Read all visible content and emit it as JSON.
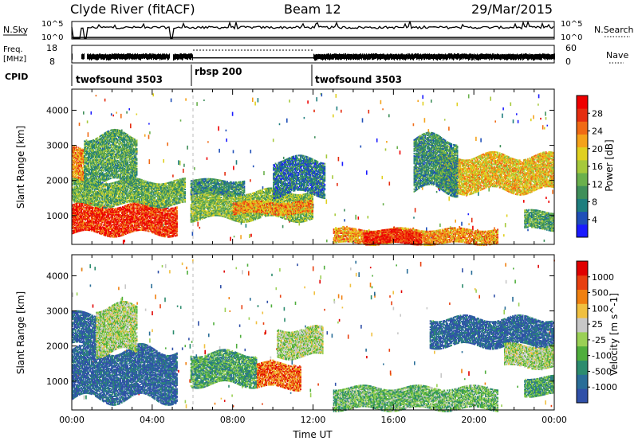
{
  "header": {
    "station": "Clyde River (fitACF)",
    "beam": "Beam 12",
    "date": "29/Mar/2015"
  },
  "nsky_panel": {
    "label": "N.Sky",
    "tick_top": "10^5",
    "tick_bottom": "10^0",
    "right_tick_top": "10^5",
    "right_tick_bottom": "10^0",
    "right_label": "N.Search"
  },
  "freq_panel": {
    "label_line1": "Freq.",
    "label_line2": "[MHz]",
    "tick_top": "18",
    "tick_bottom": "8",
    "right_tick_top": "60",
    "right_tick_bottom": "0",
    "right_label": "Nave"
  },
  "cpid_panel": {
    "label": "CPID",
    "segments": [
      {
        "name": "twofsound 3503",
        "start_h": 0,
        "end_h": 6
      },
      {
        "name": "rbsp 200",
        "start_h": 6,
        "end_h": 12
      },
      {
        "name": "twofsound 3503",
        "start_h": 12,
        "end_h": 24
      }
    ]
  },
  "time_axis": {
    "label": "Time UT",
    "ticks": [
      "00:00",
      "04:00",
      "08:00",
      "12:00",
      "16:00",
      "20:00",
      "00:00"
    ]
  },
  "chart_data": [
    {
      "type": "heatmap",
      "title": "Power",
      "ylabel": "Slant Range [km]",
      "xlabel": "",
      "x_range_h": [
        0,
        24
      ],
      "ylim": [
        180,
        4600
      ],
      "yticks": [
        "1000",
        "2000",
        "3000",
        "4000"
      ],
      "colorbar": {
        "label": "Power [dB]",
        "ticks": [
          "28",
          "24",
          "20",
          "16",
          "12",
          "8",
          "4"
        ],
        "colors": [
          "#1a1aff",
          "#1f4fb8",
          "#1e7e7e",
          "#3f8f5a",
          "#6ab04c",
          "#a6c93b",
          "#e0d020",
          "#f5a21a",
          "#f06a14",
          "#e52d10",
          "#ee0000"
        ]
      },
      "regions": [
        {
          "start_h": 0.0,
          "end_h": 5.2,
          "min_km": 480,
          "max_km": 1300,
          "level": 0.88
        },
        {
          "start_h": 0.0,
          "end_h": 5.6,
          "min_km": 1300,
          "max_km": 2000,
          "level": 0.4
        },
        {
          "start_h": 0.0,
          "end_h": 0.6,
          "min_km": 2000,
          "max_km": 2900,
          "level": 0.72
        },
        {
          "start_h": 0.6,
          "end_h": 3.2,
          "min_km": 1900,
          "max_km": 3300,
          "level": 0.35
        },
        {
          "start_h": 5.9,
          "end_h": 12.0,
          "min_km": 900,
          "max_km": 1700,
          "level": 0.45
        },
        {
          "start_h": 5.9,
          "end_h": 8.6,
          "min_km": 1600,
          "max_km": 2000,
          "level": 0.3
        },
        {
          "start_h": 8.0,
          "end_h": 12.0,
          "min_km": 1050,
          "max_km": 1400,
          "level": 0.7
        },
        {
          "start_h": 10.0,
          "end_h": 12.6,
          "min_km": 1600,
          "max_km": 2600,
          "level": 0.22
        },
        {
          "start_h": 13.0,
          "end_h": 21.2,
          "min_km": 200,
          "max_km": 620,
          "level": 0.7
        },
        {
          "start_h": 14.5,
          "end_h": 17.4,
          "min_km": 200,
          "max_km": 560,
          "level": 0.9
        },
        {
          "start_h": 18.3,
          "end_h": 24.0,
          "min_km": 1700,
          "max_km": 2700,
          "level": 0.62
        },
        {
          "start_h": 17.0,
          "end_h": 19.2,
          "min_km": 1700,
          "max_km": 3200,
          "level": 0.3
        },
        {
          "start_h": 22.5,
          "end_h": 24.0,
          "min_km": 600,
          "max_km": 1100,
          "level": 0.35
        }
      ]
    },
    {
      "type": "heatmap",
      "title": "Velocity",
      "ylabel": "Slant Range [km]",
      "xlabel": "Time UT",
      "x_range_h": [
        0,
        24
      ],
      "ylim": [
        180,
        4600
      ],
      "yticks": [
        "1000",
        "2000",
        "3000",
        "4000"
      ],
      "colorbar": {
        "label": "Velocity [m s^-1]",
        "ticks": [
          "1000",
          "500",
          "100",
          "25",
          "-25",
          "-100",
          "-500",
          "-1000"
        ],
        "colors": [
          "#3050a8",
          "#2a6e98",
          "#2c8c6e",
          "#4fae3c",
          "#9ad055",
          "#c8c8c8",
          "#f0c040",
          "#f08010",
          "#e84010",
          "#e00000"
        ]
      },
      "regions": [
        {
          "start_h": 0.0,
          "end_h": 5.2,
          "min_km": 480,
          "max_km": 1900,
          "level": 0.1
        },
        {
          "start_h": 0.0,
          "end_h": 1.2,
          "min_km": 2000,
          "max_km": 2900,
          "level": 0.1
        },
        {
          "start_h": 1.2,
          "end_h": 3.2,
          "min_km": 1800,
          "max_km": 3100,
          "level": 0.48
        },
        {
          "start_h": 5.9,
          "end_h": 9.2,
          "min_km": 900,
          "max_km": 1800,
          "level": 0.3
        },
        {
          "start_h": 9.2,
          "end_h": 11.4,
          "min_km": 800,
          "max_km": 1500,
          "level": 0.8
        },
        {
          "start_h": 10.2,
          "end_h": 12.5,
          "min_km": 1700,
          "max_km": 2500,
          "level": 0.48
        },
        {
          "start_h": 13.0,
          "end_h": 21.2,
          "min_km": 200,
          "max_km": 800,
          "level": 0.38
        },
        {
          "start_h": 17.8,
          "end_h": 24.0,
          "min_km": 2000,
          "max_km": 2800,
          "level": 0.1
        },
        {
          "start_h": 21.5,
          "end_h": 24.0,
          "min_km": 1400,
          "max_km": 2000,
          "level": 0.48
        },
        {
          "start_h": 22.5,
          "end_h": 24.0,
          "min_km": 600,
          "max_km": 1100,
          "level": 0.3
        }
      ]
    }
  ]
}
